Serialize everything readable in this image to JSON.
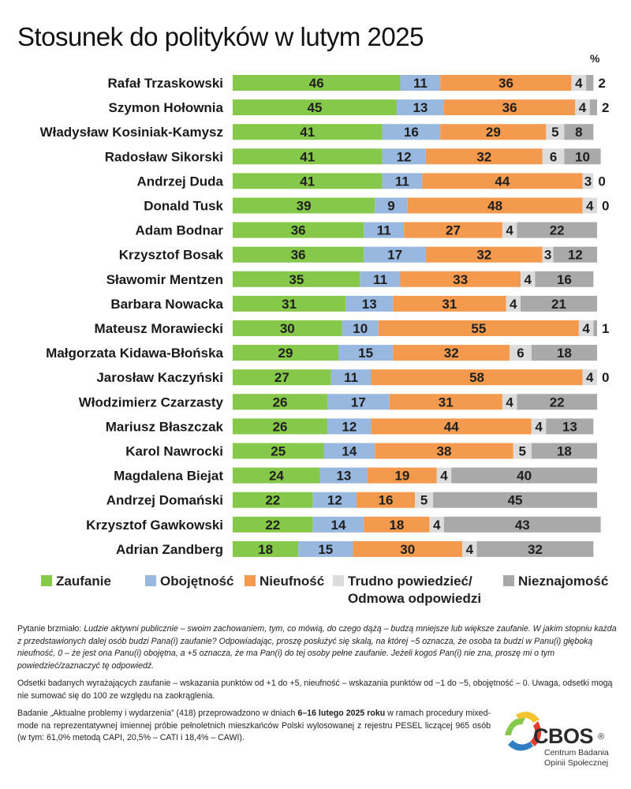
{
  "colors": {
    "zaufanie": "#86c84a",
    "obojetnosc": "#99b8e0",
    "nieufnosc": "#f49a4e",
    "trudno": "#dcdcdc",
    "nieznajomosc": "#a9a9a9"
  },
  "chart_data": {
    "type": "bar",
    "orientation": "horizontal",
    "stacked": true,
    "title": "Stosunek do polityków w lutym 2025",
    "unit": "%",
    "xlim": [
      0,
      100
    ],
    "categories": [
      "Rafał Trzaskowski",
      "Szymon Hołownia",
      "Władysław Kosiniak-Kamysz",
      "Radosław Sikorski",
      "Andrzej Duda",
      "Donald Tusk",
      "Adam Bodnar",
      "Krzysztof Bosak",
      "Sławomir Mentzen",
      "Barbara Nowacka",
      "Mateusz Morawiecki",
      "Małgorzata Kidawa-Błońska",
      "Jarosław Kaczyński",
      "Włodzimierz Czarzasty",
      "Mariusz Błaszczak",
      "Karol Nawrocki",
      "Magdalena Biejat",
      "Andrzej Domański",
      "Krzysztof Gawkowski",
      "Adrian Zandberg"
    ],
    "series": [
      {
        "name": "Zaufanie",
        "color_key": "zaufanie",
        "values": [
          46,
          45,
          41,
          41,
          41,
          39,
          36,
          36,
          35,
          31,
          30,
          29,
          27,
          26,
          26,
          25,
          24,
          22,
          22,
          18
        ]
      },
      {
        "name": "Obojętność",
        "color_key": "obojetnosc",
        "values": [
          11,
          13,
          16,
          12,
          11,
          9,
          11,
          17,
          11,
          13,
          10,
          15,
          11,
          17,
          12,
          14,
          13,
          12,
          14,
          15
        ]
      },
      {
        "name": "Nieufność",
        "color_key": "nieufnosc",
        "values": [
          36,
          36,
          29,
          32,
          44,
          48,
          27,
          32,
          33,
          31,
          55,
          32,
          58,
          31,
          44,
          38,
          19,
          16,
          18,
          30
        ]
      },
      {
        "name": "Trudno powiedzieć/ Odmowa odpowiedzi",
        "color_key": "trudno",
        "values": [
          4,
          4,
          5,
          6,
          3,
          4,
          4,
          3,
          4,
          4,
          4,
          6,
          4,
          4,
          4,
          5,
          4,
          5,
          4,
          4
        ]
      },
      {
        "name": "Nieznajomość",
        "color_key": "nieznajomosc",
        "values": [
          2,
          2,
          8,
          10,
          0,
          0,
          22,
          12,
          16,
          21,
          1,
          18,
          0,
          22,
          13,
          18,
          40,
          45,
          43,
          32
        ]
      }
    ],
    "legend_position": "bottom"
  },
  "legend": [
    {
      "label": "Zaufanie",
      "color_key": "zaufanie"
    },
    {
      "label": "Obojętność",
      "color_key": "obojetnosc"
    },
    {
      "label": "Nieufność",
      "color_key": "nieufnosc"
    },
    {
      "label": "Trudno powiedzieć/",
      "label2": "Odmowa odpowiedzi",
      "color_key": "trudno"
    },
    {
      "label": "Nieznajomość",
      "color_key": "nieznajomosc"
    }
  ],
  "notes": {
    "question_prefix": "Pytanie brzmiało: ",
    "question_text": "Ludzie aktywni publicznie – swoim zachowaniem, tym, co mówią, do czego dążą – budzą mniejsze lub większe zaufanie. W jakim stopniu każda z przedstawionych dalej osób budzi Pana(i) zaufanie? Odpowiadając, proszę posłużyć się skalą, na której −5 oznacza, że osoba ta budzi w Panu(i) głęboką nieufność, 0 – że jest ona Panu(i) obojętna, a +5 oznacza, że ma Pan(i) do tej osoby pełne zaufanie. Jeżeli kogoś Pan(i) nie zna, proszę mi o tym powiedzieć/zaznaczyć tę odpowiedź.",
    "definitions": "Odsetki badanych wyrażających zaufanie – wskazania punktów od +1 do +5, nieufność – wskazania punktów od −1 do −5, obojętność – 0. Uwaga, odsetki mogą nie sumować się do 100 ze względu na zaokrąglenia.",
    "method_1": "Badanie „Aktualne problemy i wydarzenia” (418) przeprowadzono w dniach ",
    "method_dates": "6–16 lutego 2025 roku",
    "method_2": " w ramach procedury mixed-mode na reprezentatywnej imiennej próbie pełnoletnich mieszkańców Polski wylosowanej z rejestru PESEL liczącej 965 osób (w tym: 61,0% metodą CAPI, 20,5% – CATI i 18,4% – CAWI)."
  },
  "logo": {
    "word": "CBOS",
    "reg": "®",
    "line1": "Centrum Badania",
    "line2": "Opinii Społecznej"
  }
}
